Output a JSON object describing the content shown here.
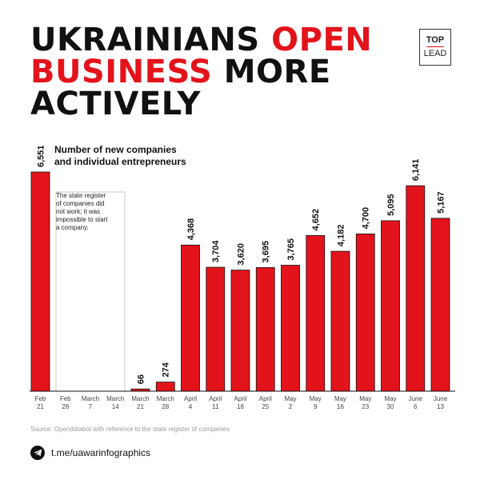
{
  "title": {
    "line1_black": "UKRAINIANS",
    "line1_red": "OPEN",
    "line2_red": "BUSINESS",
    "line2_black": "MORE",
    "line3_black": "ACTIVELY"
  },
  "logo": {
    "top": "TOP",
    "bottom": "LEAD"
  },
  "colors": {
    "accent": "#e3131b",
    "text": "#111111",
    "muted": "#9a9a9a"
  },
  "chart_data": {
    "type": "bar",
    "title": "Number of new companies\nand individual entrepreneurs",
    "annotation": "The state register\nof companies did\nnot work; it was\nimpossible to start\na company.",
    "categories": [
      "Feb\n21",
      "Feb\n28",
      "March\n7",
      "March\n14",
      "March\n21",
      "March\n28",
      "April\n4",
      "April\n11",
      "April\n18",
      "April\n25",
      "May\n2",
      "May\n9",
      "May\n16",
      "May\n23",
      "May\n30",
      "June\n6",
      "June\n13"
    ],
    "values": [
      6551,
      null,
      null,
      null,
      66,
      274,
      4368,
      3704,
      3620,
      3695,
      3765,
      4652,
      4182,
      4700,
      5095,
      6141,
      5167
    ],
    "value_labels": [
      "6,551",
      "",
      "",
      "",
      "66",
      "274",
      "4,368",
      "3,704",
      "3,620",
      "3,695",
      "3,765",
      "4,652",
      "4,182",
      "4,700",
      "5,095",
      "6,141",
      "5,167"
    ],
    "ylim": [
      0,
      6551
    ],
    "grid": false,
    "legend": "none"
  },
  "source": "Source: Opendatabot with reference to the state register of companies",
  "footer": {
    "telegram_icon": "telegram-icon",
    "link": "t.me/uawarinfographics"
  }
}
